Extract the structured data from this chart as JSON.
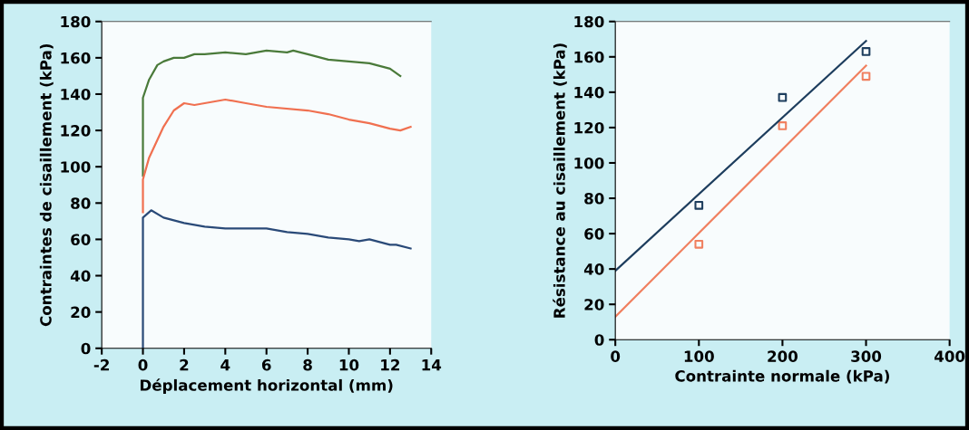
{
  "chart_data": [
    {
      "type": "line",
      "xlabel": "Déplacement horizontal (mm)",
      "ylabel": "Contraintes de cisaillement (kPa)",
      "xlim": [
        -2,
        14
      ],
      "xticks": [
        -2,
        0,
        2,
        4,
        6,
        8,
        10,
        12,
        14
      ],
      "ylim": [
        0,
        180
      ],
      "yticks": [
        0,
        20,
        40,
        60,
        80,
        100,
        120,
        140,
        160,
        180
      ],
      "grid": false,
      "legend": false,
      "marker": "none",
      "line_style": "solid",
      "series": [
        {
          "color": "#4a7a3a",
          "x": [
            0,
            0,
            0.3,
            0.7,
            1,
            1.5,
            2,
            2.5,
            3,
            4,
            5,
            5.5,
            6,
            7,
            7.3,
            8,
            9,
            10,
            11,
            12,
            12.5
          ],
          "values": [
            95,
            138,
            148,
            156,
            158,
            160,
            160,
            162,
            162,
            163,
            162,
            163,
            164,
            163,
            164,
            162,
            159,
            158,
            157,
            154,
            150
          ]
        },
        {
          "color": "#f07050",
          "x": [
            0,
            0,
            0.3,
            1,
            1.5,
            2,
            2.5,
            3,
            4,
            5,
            6,
            8,
            9,
            10,
            11,
            12,
            12.5,
            13
          ],
          "values": [
            75,
            93,
            105,
            122,
            131,
            135,
            134,
            135,
            137,
            135,
            133,
            131,
            129,
            126,
            124,
            121,
            120,
            122
          ]
        },
        {
          "color": "#2a4a78",
          "x": [
            0,
            0,
            0.4,
            1,
            2,
            3,
            4,
            6,
            7,
            8,
            9,
            10,
            10.5,
            11,
            12,
            12.3,
            13
          ],
          "values": [
            0,
            72,
            76,
            72,
            69,
            67,
            66,
            66,
            64,
            63,
            61,
            60,
            59,
            60,
            57,
            57,
            55
          ]
        }
      ]
    },
    {
      "type": "scatter",
      "xlabel": "Contrainte normale (kPa)",
      "ylabel": "Résistance au cisaillement (kPa)",
      "xlim": [
        0,
        400
      ],
      "xticks": [
        0,
        100,
        200,
        300,
        400
      ],
      "ylim": [
        0,
        180
      ],
      "yticks": [
        0,
        20,
        40,
        60,
        80,
        100,
        120,
        140,
        160,
        180
      ],
      "grid": false,
      "legend": false,
      "series": [
        {
          "color": "#1e3e5e",
          "marker": "square",
          "x": [
            100,
            200,
            300
          ],
          "values": [
            76,
            137,
            163
          ]
        },
        {
          "color": "#f08060",
          "marker": "square",
          "x": [
            100,
            200,
            300
          ],
          "values": [
            54,
            121,
            149
          ]
        },
        {
          "type": "line",
          "marker": "none",
          "color": "#1e3e5e",
          "x": [
            0,
            300
          ],
          "values": [
            39,
            169
          ]
        },
        {
          "type": "line",
          "marker": "none",
          "color": "#f08060",
          "x": [
            0,
            300
          ],
          "values": [
            13,
            155
          ]
        }
      ]
    }
  ]
}
